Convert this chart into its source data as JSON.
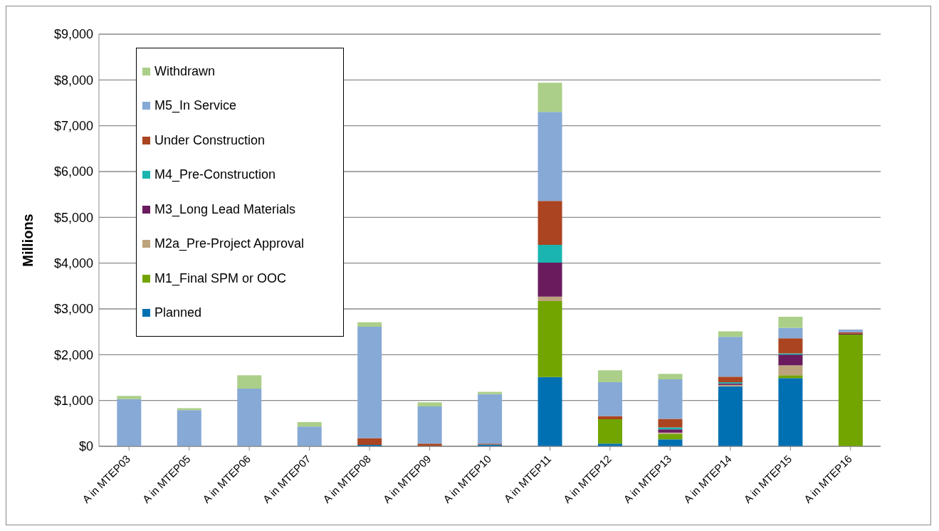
{
  "chart_data": {
    "type": "bar",
    "stacked": true,
    "ylabel": "Millions",
    "categories": [
      "A in MTEP03",
      "A in MTEP05",
      "A in MTEP06",
      "A in MTEP07",
      "A in MTEP08",
      "A in MTEP09",
      "A in MTEP10",
      "A in MTEP11",
      "A in MTEP12",
      "A in MTEP13",
      "A in MTEP14",
      "A in MTEP15",
      "A in MTEP16"
    ],
    "series": [
      {
        "name": "Planned",
        "color": "#0070b3",
        "values": [
          0,
          0,
          0,
          0,
          30,
          0,
          40,
          1510,
          60,
          150,
          1310,
          1490,
          0
        ]
      },
      {
        "name": "M1_Final SPM or OOC",
        "color": "#72a500",
        "values": [
          0,
          0,
          0,
          0,
          0,
          0,
          0,
          1660,
          530,
          120,
          0,
          60,
          2440
        ]
      },
      {
        "name": "M2a_Pre-Project Approval",
        "color": "#bca37c",
        "values": [
          0,
          0,
          0,
          0,
          0,
          0,
          0,
          100,
          0,
          30,
          30,
          220,
          0
        ]
      },
      {
        "name": "M3_Long Lead Materials",
        "color": "#6a1b5e",
        "values": [
          0,
          0,
          0,
          0,
          0,
          0,
          0,
          740,
          0,
          70,
          30,
          230,
          20
        ]
      },
      {
        "name": "M4_Pre-Construction",
        "color": "#1ab5b0",
        "values": [
          0,
          0,
          0,
          0,
          0,
          0,
          0,
          390,
          0,
          40,
          30,
          30,
          0
        ]
      },
      {
        "name": "Under Construction",
        "color": "#ab4420",
        "values": [
          0,
          0,
          0,
          0,
          150,
          60,
          20,
          960,
          70,
          190,
          120,
          330,
          30
        ]
      },
      {
        "name": "M5_In Service",
        "color": "#86a9d6",
        "values": [
          1030,
          790,
          1260,
          430,
          2430,
          810,
          1080,
          1940,
          740,
          860,
          870,
          230,
          60
        ]
      },
      {
        "name": "Withdrawn",
        "color": "#abcf88",
        "values": [
          70,
          40,
          290,
          100,
          100,
          90,
          50,
          640,
          260,
          120,
          120,
          240,
          0
        ]
      }
    ],
    "ylim": [
      0,
      9000
    ],
    "yticks": [
      {
        "value": 0,
        "label": "$0"
      },
      {
        "value": 1000,
        "label": "$1,000"
      },
      {
        "value": 2000,
        "label": "$2,000"
      },
      {
        "value": 3000,
        "label": "$3,000"
      },
      {
        "value": 4000,
        "label": "$4,000"
      },
      {
        "value": 5000,
        "label": "$5,000"
      },
      {
        "value": 6000,
        "label": "$6,000"
      },
      {
        "value": 7000,
        "label": "$7,000"
      },
      {
        "value": 8000,
        "label": "$8,000"
      },
      {
        "value": 9000,
        "label": "$9,000"
      }
    ],
    "grid": "y",
    "legend": "top left"
  }
}
